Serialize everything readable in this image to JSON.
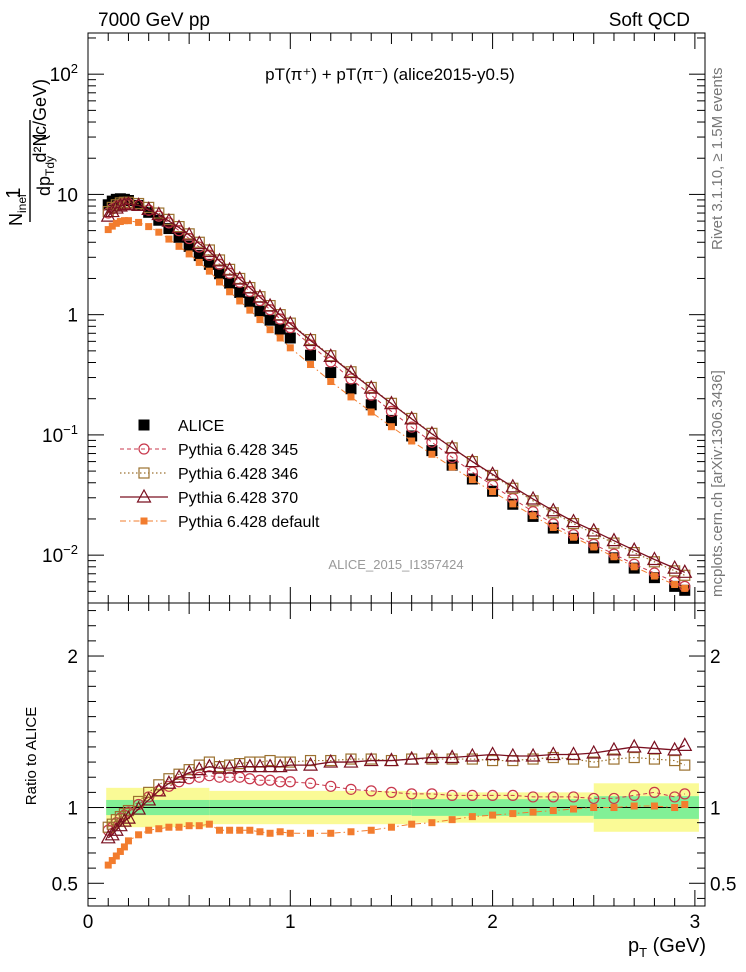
{
  "header": {
    "left": "7000 GeV pp",
    "right": "Soft QCD"
  },
  "side_labels": {
    "rivet": "Rivet 3.1.10, ≥ 1.5M events",
    "mcplots": "mcplots.cern.ch [arXiv:1306.3436]"
  },
  "chart_data": [
    {
      "type": "scatter",
      "title": "pT(π⁺) + pT(π⁻) (alice2015-y0.5)",
      "watermark": "ALICE_2015_I1357424",
      "ylabel": "1/N_inel d²N/dp_T dy (c/GeV)",
      "ylabel_parts": {
        "one": "1",
        "num": "d²N",
        "den_a": "N",
        "den_a_sub": "inel",
        "den_b": "dp",
        "den_b_sub": "Tdy",
        "unit": "(c/GeV)"
      },
      "yscale": "log",
      "ylim": [
        0.004,
        220
      ],
      "xlim": [
        0,
        3.05
      ],
      "y_ticks": [
        {
          "v": 0.01,
          "t": "10",
          "e": "−2"
        },
        {
          "v": 0.1,
          "t": "10",
          "e": "−1"
        },
        {
          "v": 1,
          "t": "1",
          "e": ""
        },
        {
          "v": 10,
          "t": "10",
          "e": ""
        },
        {
          "v": 100,
          "t": "10",
          "e": "2"
        }
      ],
      "legend": [
        {
          "name": "ALICE"
        },
        {
          "name": "Pythia 6.428 345"
        },
        {
          "name": "Pythia 6.428 346"
        },
        {
          "name": "Pythia 6.428 370"
        },
        {
          "name": "Pythia 6.428 default"
        }
      ],
      "x": [
        0.1,
        0.12,
        0.14,
        0.16,
        0.18,
        0.2,
        0.25,
        0.3,
        0.35,
        0.4,
        0.45,
        0.5,
        0.55,
        0.6,
        0.65,
        0.7,
        0.75,
        0.8,
        0.85,
        0.9,
        0.95,
        1.0,
        1.1,
        1.2,
        1.3,
        1.4,
        1.5,
        1.6,
        1.7,
        1.8,
        1.9,
        2.0,
        2.1,
        2.2,
        2.3,
        2.4,
        2.5,
        2.6,
        2.7,
        2.8,
        2.9,
        2.95
      ],
      "series": [
        {
          "name": "ALICE",
          "color": "#000000",
          "values": [
            8.2,
            8.8,
            9.1,
            9.2,
            9.1,
            8.9,
            8.1,
            7.1,
            6.1,
            5.2,
            4.4,
            3.7,
            3.1,
            2.62,
            2.19,
            1.83,
            1.53,
            1.28,
            1.07,
            0.9,
            0.76,
            0.64,
            0.46,
            0.33,
            0.242,
            0.178,
            0.132,
            0.098,
            0.074,
            0.056,
            0.043,
            0.034,
            0.0265,
            0.021,
            0.0168,
            0.0138,
            0.0115,
            0.0095,
            0.0078,
            0.0065,
            0.0055,
            0.0051
          ]
        },
        {
          "name": "Pythia 6.428 345",
          "color": "#c8384c",
          "values": [
            7.0,
            7.6,
            8.0,
            8.3,
            8.4,
            8.4,
            8.1,
            7.4,
            6.6,
            5.8,
            5.0,
            4.3,
            3.65,
            3.12,
            2.63,
            2.21,
            1.86,
            1.56,
            1.31,
            1.1,
            0.92,
            0.78,
            0.56,
            0.405,
            0.292,
            0.214,
            0.157,
            0.116,
            0.087,
            0.065,
            0.049,
            0.038,
            0.0295,
            0.023,
            0.0182,
            0.0148,
            0.0123,
            0.0102,
            0.0084,
            0.0071,
            0.006,
            0.0055
          ]
        },
        {
          "name": "Pythia 6.428 346",
          "color": "#9b7130",
          "values": [
            7.2,
            7.8,
            8.2,
            8.5,
            8.6,
            8.6,
            8.4,
            7.8,
            7.0,
            6.2,
            5.4,
            4.7,
            4.0,
            3.45,
            2.85,
            2.38,
            2.0,
            1.68,
            1.41,
            1.19,
            1.0,
            0.85,
            0.62,
            0.455,
            0.335,
            0.248,
            0.183,
            0.137,
            0.103,
            0.078,
            0.06,
            0.046,
            0.036,
            0.0283,
            0.0225,
            0.0183,
            0.0151,
            0.0126,
            0.0105,
            0.0088,
            0.0074,
            0.0068
          ]
        },
        {
          "name": "Pythia 6.428 370",
          "color": "#7a1020",
          "values": [
            6.6,
            7.2,
            7.7,
            8.0,
            8.2,
            8.3,
            8.1,
            7.5,
            6.8,
            6.0,
            5.3,
            4.6,
            3.9,
            3.35,
            2.8,
            2.35,
            1.98,
            1.67,
            1.4,
            1.18,
            0.99,
            0.84,
            0.61,
            0.45,
            0.33,
            0.245,
            0.182,
            0.136,
            0.102,
            0.078,
            0.06,
            0.047,
            0.037,
            0.0293,
            0.0234,
            0.019,
            0.0159,
            0.0132,
            0.011,
            0.0092,
            0.0078,
            0.0072
          ]
        },
        {
          "name": "Pythia 6.428 default",
          "color": "#f27c2e",
          "values": [
            5.1,
            5.45,
            5.75,
            5.95,
            6.05,
            6.05,
            5.85,
            5.4,
            4.85,
            4.25,
            3.7,
            3.2,
            2.72,
            2.3,
            1.87,
            1.55,
            1.3,
            1.09,
            0.91,
            0.75,
            0.64,
            0.53,
            0.385,
            0.278,
            0.207,
            0.155,
            0.117,
            0.089,
            0.069,
            0.054,
            0.0425,
            0.0338,
            0.0267,
            0.0213,
            0.017,
            0.0141,
            0.0117,
            0.0097,
            0.008,
            0.0067,
            0.0057,
            0.0053
          ]
        }
      ]
    },
    {
      "type": "scatter",
      "title": "",
      "xlabel": "p_T (GeV)",
      "xlabel_parts": {
        "p": "p",
        "sub": "T",
        "unit": " (GeV)"
      },
      "ylabel": "Ratio to ALICE",
      "ylim": [
        0.35,
        2.35
      ],
      "xlim": [
        0,
        3.05
      ],
      "y_ticks": [
        0.5,
        1,
        2
      ],
      "x_ticks": [
        0,
        1,
        2,
        3
      ],
      "x_tick_labels": [
        "0",
        "1",
        "2",
        "3"
      ],
      "y_tick_labels": [
        "0.5",
        "1",
        "2"
      ],
      "bands": [
        {
          "x0": 0.09,
          "x1": 0.6,
          "green": 0.05,
          "yellow": 0.13
        },
        {
          "x0": 0.6,
          "x1": 1.6,
          "green": 0.05,
          "yellow": 0.11
        },
        {
          "x0": 1.6,
          "x1": 2.5,
          "green": 0.055,
          "yellow": 0.1
        },
        {
          "x0": 2.5,
          "x1": 3.02,
          "green": 0.075,
          "yellow": 0.16
        }
      ],
      "band_colors": {
        "green": "#82f096",
        "yellow": "#fafa96"
      },
      "x": [
        0.1,
        0.12,
        0.14,
        0.16,
        0.18,
        0.2,
        0.25,
        0.3,
        0.35,
        0.4,
        0.45,
        0.5,
        0.55,
        0.6,
        0.65,
        0.7,
        0.75,
        0.8,
        0.85,
        0.9,
        0.95,
        1.0,
        1.1,
        1.2,
        1.3,
        1.4,
        1.5,
        1.6,
        1.7,
        1.8,
        1.9,
        2.0,
        2.1,
        2.2,
        2.3,
        2.4,
        2.5,
        2.6,
        2.7,
        2.8,
        2.9,
        2.95
      ],
      "series": [
        {
          "name": "Pythia 6.428 345",
          "color": "#c8384c",
          "values": [
            0.85,
            0.87,
            0.9,
            0.93,
            0.95,
            0.97,
            1.02,
            1.07,
            1.11,
            1.14,
            1.17,
            1.19,
            1.2,
            1.21,
            1.2,
            1.2,
            1.2,
            1.19,
            1.18,
            1.18,
            1.17,
            1.17,
            1.16,
            1.14,
            1.12,
            1.11,
            1.1,
            1.09,
            1.09,
            1.08,
            1.08,
            1.08,
            1.08,
            1.07,
            1.07,
            1.07,
            1.06,
            1.06,
            1.08,
            1.1,
            1.07,
            1.09
          ]
        },
        {
          "name": "Pythia 6.428 346",
          "color": "#9b7130",
          "values": [
            0.87,
            0.89,
            0.92,
            0.94,
            0.96,
            0.98,
            1.04,
            1.1,
            1.15,
            1.19,
            1.22,
            1.25,
            1.28,
            1.3,
            1.27,
            1.28,
            1.29,
            1.3,
            1.3,
            1.31,
            1.3,
            1.3,
            1.31,
            1.31,
            1.32,
            1.32,
            1.31,
            1.32,
            1.32,
            1.32,
            1.32,
            1.31,
            1.31,
            1.32,
            1.33,
            1.32,
            1.3,
            1.32,
            1.33,
            1.32,
            1.31,
            1.28
          ]
        },
        {
          "name": "Pythia 6.428 370",
          "color": "#7a1020",
          "values": [
            0.8,
            0.82,
            0.85,
            0.88,
            0.91,
            0.93,
            0.99,
            1.05,
            1.11,
            1.16,
            1.2,
            1.23,
            1.25,
            1.27,
            1.26,
            1.26,
            1.27,
            1.27,
            1.27,
            1.27,
            1.27,
            1.28,
            1.28,
            1.3,
            1.3,
            1.31,
            1.31,
            1.32,
            1.33,
            1.33,
            1.34,
            1.35,
            1.34,
            1.34,
            1.35,
            1.35,
            1.36,
            1.38,
            1.4,
            1.39,
            1.38,
            1.41
          ]
        },
        {
          "name": "Pythia 6.428 default",
          "color": "#f27c2e",
          "values": [
            0.62,
            0.65,
            0.68,
            0.71,
            0.74,
            0.78,
            0.82,
            0.85,
            0.86,
            0.87,
            0.87,
            0.88,
            0.88,
            0.89,
            0.85,
            0.85,
            0.85,
            0.85,
            0.84,
            0.83,
            0.84,
            0.83,
            0.83,
            0.83,
            0.84,
            0.85,
            0.87,
            0.89,
            0.9,
            0.92,
            0.94,
            0.95,
            0.96,
            0.97,
            0.98,
            0.99,
            1.0,
            1.0,
            1.01,
            1.01,
            1.0,
            1.02
          ]
        }
      ]
    }
  ]
}
